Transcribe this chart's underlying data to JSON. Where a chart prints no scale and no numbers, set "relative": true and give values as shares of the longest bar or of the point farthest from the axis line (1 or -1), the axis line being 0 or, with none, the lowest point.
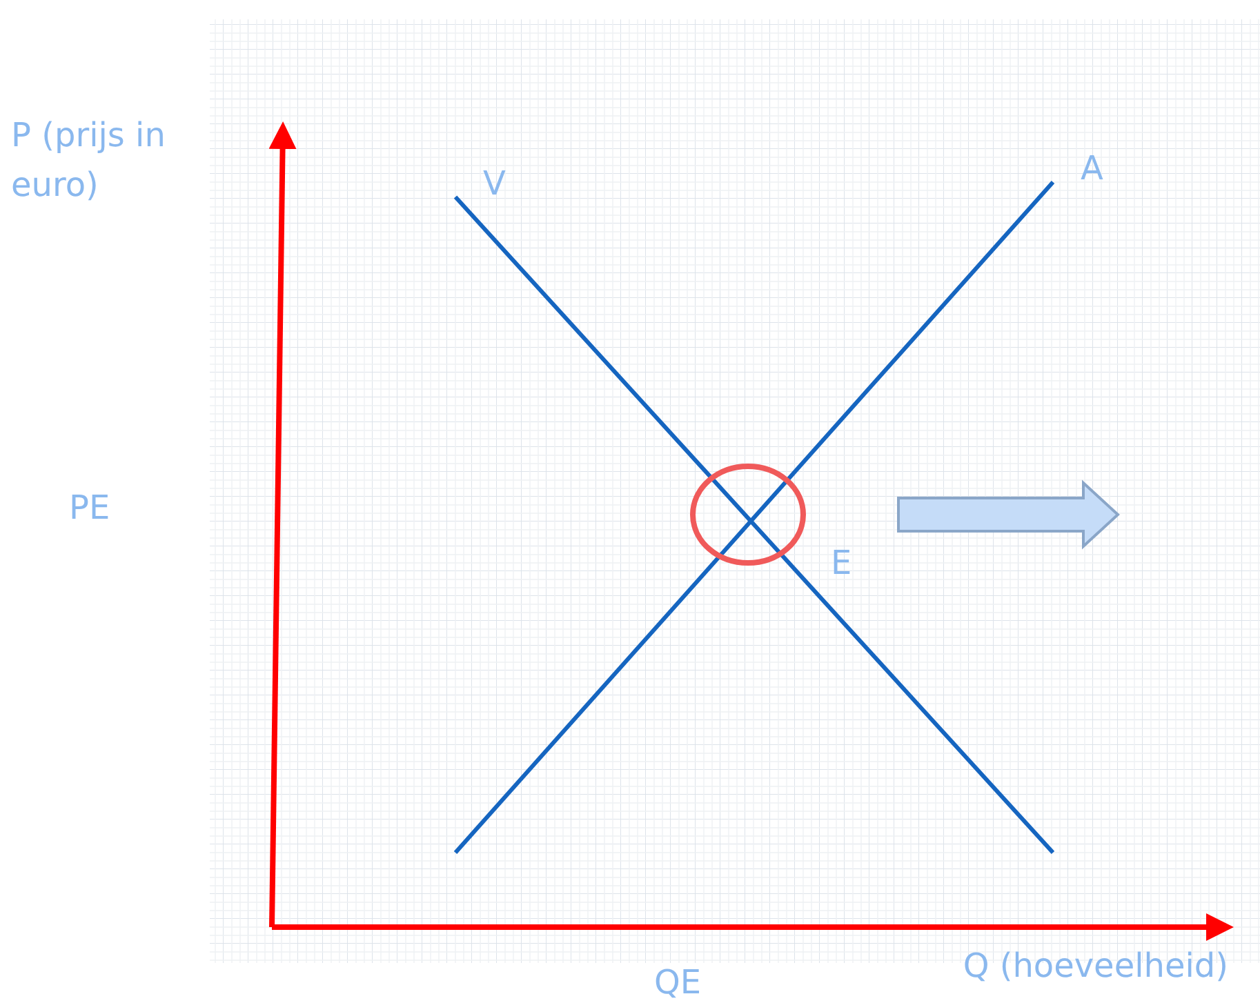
{
  "chart_data": {
    "type": "line",
    "relative": true,
    "categories": [
      null,
      null
    ],
    "xlabel": "Q (hoeveelheid)",
    "ylabel": "P (prijs in euro)",
    "series": [
      {
        "name": "V",
        "color": "#1565c0",
        "values": [
          0.98,
          0.1
        ]
      },
      {
        "name": "A",
        "color": "#1565c0",
        "values": [
          0.1,
          1
        ]
      }
    ],
    "annotations": [
      "PE",
      "QE",
      "E"
    ]
  }
}
